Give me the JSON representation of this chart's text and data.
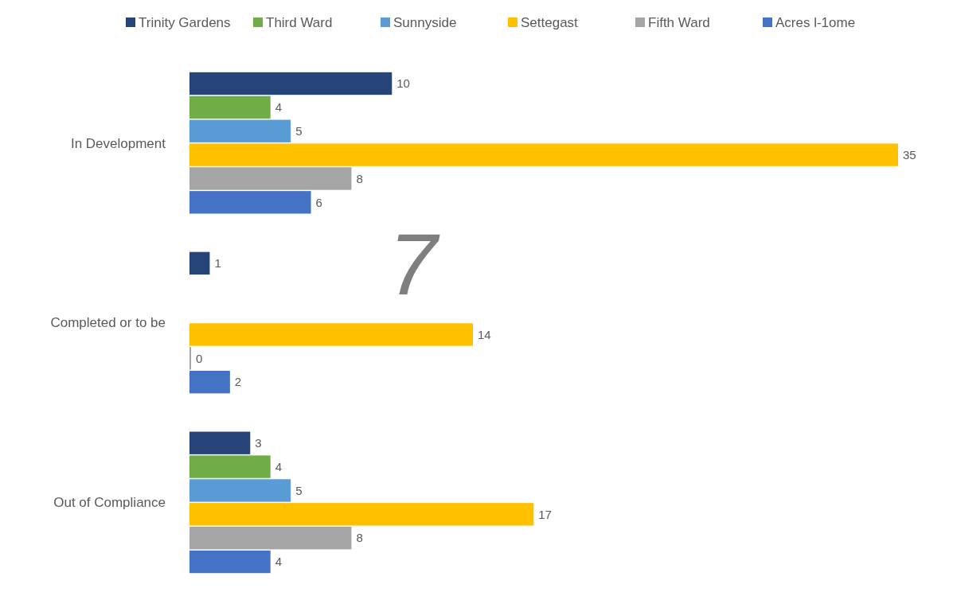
{
  "chart_data": {
    "type": "bar",
    "orientation": "horizontal",
    "categories": [
      "In Development",
      "Completed or to be",
      "Out of Compliance"
    ],
    "series": [
      {
        "name": "Trinity Gardens",
        "color": "#264478",
        "values": [
          10,
          1,
          3
        ]
      },
      {
        "name": "Third Ward",
        "color": "#70ad47",
        "values": [
          4,
          null,
          4
        ]
      },
      {
        "name": "Sunnyside",
        "color": "#5b9bd5",
        "values": [
          5,
          null,
          5
        ]
      },
      {
        "name": "Settegast",
        "color": "#ffc000",
        "values": [
          35,
          14,
          17
        ]
      },
      {
        "name": "Fifth Ward",
        "color": "#a5a5a5",
        "values": [
          8,
          0,
          8
        ]
      },
      {
        "name": "Acres l-1ome",
        "color": "#4472c4",
        "values": [
          6,
          2,
          4
        ]
      }
    ],
    "data_labels": true,
    "legend": "top",
    "annotations": [
      "7"
    ]
  }
}
